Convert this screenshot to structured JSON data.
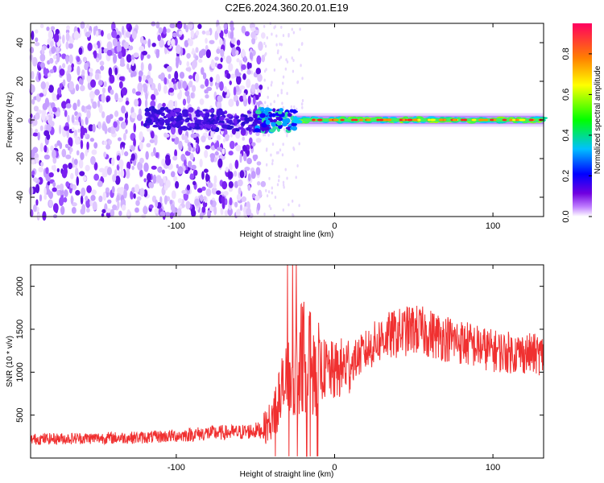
{
  "title": "C2E6.2024.360.20.01.E19",
  "chart_data": [
    {
      "type": "heatmap",
      "xlabel": "Height of straight line (km)",
      "ylabel": "Frequency (Hz)",
      "xlim": [
        -192,
        132
      ],
      "ylim": [
        -50,
        50
      ],
      "xticks": [
        -100,
        0,
        100
      ],
      "yticks": [
        -40,
        -20,
        0,
        20,
        40
      ],
      "colorbar": {
        "label": "Normalized spectral amplitude",
        "range": [
          0,
          0.95
        ],
        "ticks": [
          "0.0",
          "0.2",
          "0.4",
          "0.6",
          "0.8"
        ],
        "tick_values": [
          0,
          0.2,
          0.4,
          0.6,
          0.8
        ]
      },
      "description_points": [
        {
          "x": -192,
          "band_halfwidth_hz": 50,
          "peak_amplitude": 0.12
        },
        {
          "x": -60,
          "band_halfwidth_hz": 50,
          "peak_amplitude": 0.15
        },
        {
          "x": -35,
          "band_halfwidth_hz": 8,
          "peak_amplitude": 0.3
        },
        {
          "x": -20,
          "band_halfwidth_hz": 3,
          "peak_amplitude": 0.85
        },
        {
          "x": 0,
          "band_halfwidth_hz": 3,
          "peak_amplitude": 0.9
        },
        {
          "x": 132,
          "band_halfwidth_hz": 3,
          "peak_amplitude": 0.9
        }
      ]
    },
    {
      "type": "line",
      "xlabel": "Height of straight line (km)",
      "ylabel": "SNR (10 * v/v)",
      "xlim": [
        -192,
        132
      ],
      "ylim": [
        0,
        2250
      ],
      "xticks": [
        -100,
        0,
        100
      ],
      "yticks": [
        500,
        1000,
        1500,
        2000
      ],
      "series_color": "#f03030",
      "series": [
        {
          "x": [
            -192,
            -160,
            -120,
            -100,
            -80,
            -60,
            -45,
            -40,
            -35,
            -30,
            -25,
            -20,
            -15,
            -10,
            0,
            10,
            20,
            30,
            40,
            50,
            60,
            70,
            80,
            90,
            100,
            110,
            120,
            132
          ],
          "y": [
            220,
            230,
            240,
            260,
            290,
            300,
            330,
            450,
            700,
            900,
            1050,
            1200,
            1100,
            1050,
            1000,
            1100,
            1250,
            1400,
            1450,
            1500,
            1450,
            1400,
            1350,
            1300,
            1250,
            1230,
            1220,
            1200
          ]
        }
      ]
    }
  ]
}
